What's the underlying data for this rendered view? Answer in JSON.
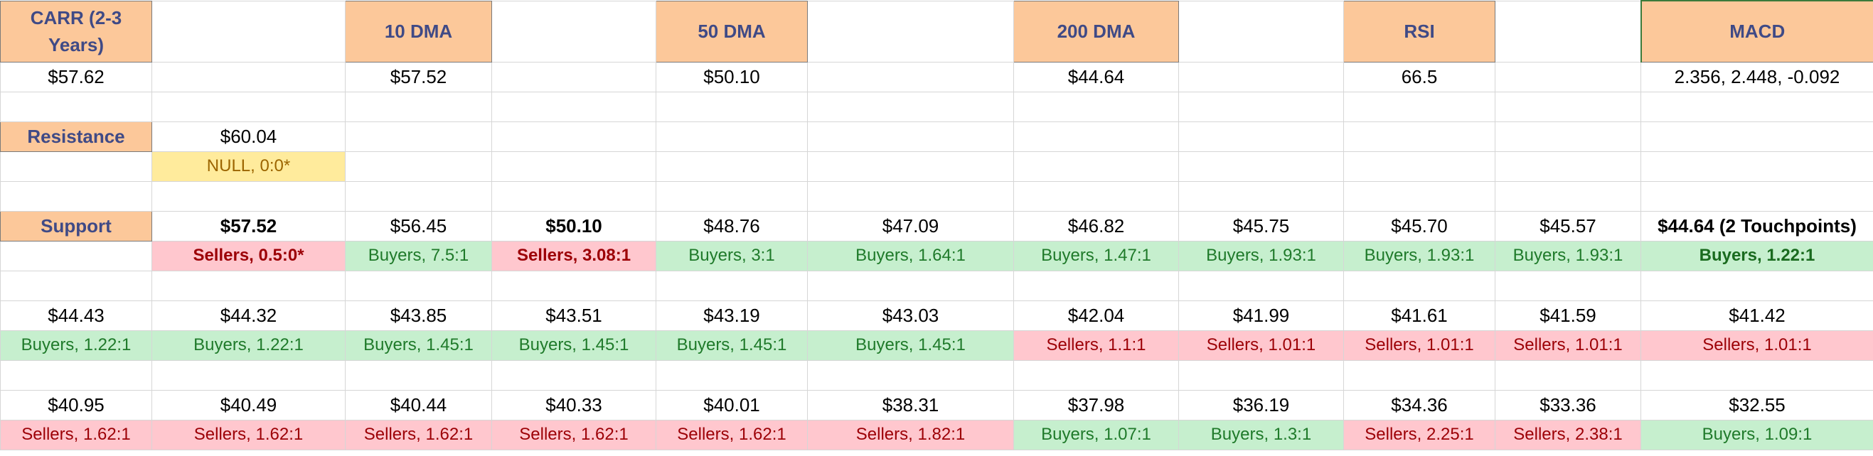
{
  "headers": {
    "carr": "CARR (2-3 Years)",
    "dma10": "10 DMA",
    "dma50": "50 DMA",
    "dma200": "200 DMA",
    "rsi": "RSI",
    "macd": "MACD"
  },
  "values": {
    "carr": "$57.62",
    "dma10": "$57.52",
    "dma50": "$50.10",
    "dma200": "$44.64",
    "rsi": "66.5",
    "macd": "2.356, 2.448, -0.092"
  },
  "resistance": {
    "label": "Resistance",
    "price": "$60.04",
    "ratio": "NULL, 0:0*"
  },
  "support": {
    "label": "Support",
    "row1": {
      "prices": [
        "$57.52",
        "$56.45",
        "$50.10",
        "$48.76",
        "$47.09",
        "$46.82",
        "$45.75",
        "$45.70",
        "$45.57",
        "$44.64 (2 Touchpoints)"
      ],
      "ratios": [
        "Sellers, 0.5:0*",
        "Buyers, 7.5:1",
        "Sellers, 3.08:1",
        "Buyers, 3:1",
        "Buyers, 1.64:1",
        "Buyers, 1.47:1",
        "Buyers, 1.93:1",
        "Buyers, 1.93:1",
        "Buyers, 1.93:1",
        "Buyers, 1.22:1"
      ]
    },
    "row2": {
      "prices": [
        "$44.43",
        "$44.32",
        "$43.85",
        "$43.51",
        "$43.19",
        "$43.03",
        "$42.04",
        "$41.99",
        "$41.61",
        "$41.59",
        "$41.42"
      ],
      "ratios": [
        "Buyers, 1.22:1",
        "Buyers, 1.22:1",
        "Buyers, 1.45:1",
        "Buyers, 1.45:1",
        "Buyers, 1.45:1",
        "Buyers, 1.45:1",
        "Sellers, 1.1:1",
        "Sellers, 1.01:1",
        "Sellers, 1.01:1",
        "Sellers, 1.01:1",
        "Sellers, 1.01:1"
      ]
    },
    "row3": {
      "prices": [
        "$40.95",
        "$40.49",
        "$40.44",
        "$40.33",
        "$40.01",
        "$38.31",
        "$37.98",
        "$36.19",
        "$34.36",
        "$33.36",
        "$32.55"
      ],
      "ratios": [
        "Sellers, 1.62:1",
        "Sellers, 1.62:1",
        "Sellers, 1.62:1",
        "Sellers, 1.62:1",
        "Sellers, 1.62:1",
        "Sellers, 1.82:1",
        "Buyers, 1.07:1",
        "Buyers, 1.3:1",
        "Sellers, 2.25:1",
        "Sellers, 2.38:1",
        "Buyers, 1.09:1"
      ]
    }
  }
}
